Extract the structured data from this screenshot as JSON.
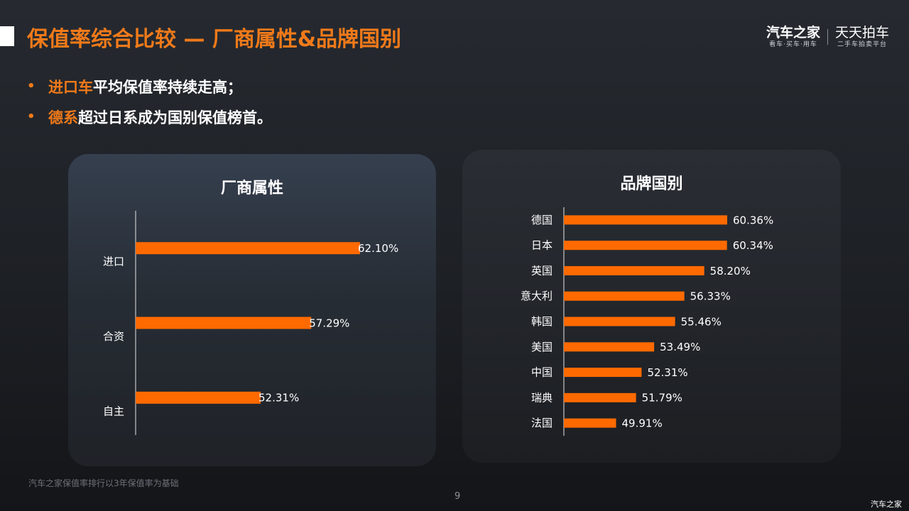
{
  "header": {
    "title": "保值率综合比较 — 厂商属性&品牌国别",
    "logo_left_main": "汽车之家",
    "logo_left_sub": "看车·买车·用车",
    "logo_right_main": "天天拍车",
    "logo_right_sub": "二手车拍卖平台"
  },
  "bullets": [
    {
      "highlight": "进口车",
      "text": "平均保值率持续走高；"
    },
    {
      "highlight": "德系",
      "text": "超过日系成为国别保值榜首。"
    }
  ],
  "colors": {
    "accent": "#f07a1a",
    "bar": "#ff6a00"
  },
  "chart_data": [
    {
      "type": "bar",
      "orientation": "horizontal",
      "title": "厂商属性",
      "categories": [
        "进口",
        "合资",
        "自主"
      ],
      "values": [
        62.1,
        57.29,
        52.31
      ],
      "value_labels": [
        "62.10%",
        "57.29%",
        "52.31%"
      ],
      "xlim": [
        40,
        62.1
      ],
      "grid": false
    },
    {
      "type": "bar",
      "orientation": "horizontal",
      "title": "品牌国别",
      "categories": [
        "德国",
        "日本",
        "英国",
        "意大利",
        "韩国",
        "美国",
        "中国",
        "瑞典",
        "法国"
      ],
      "values": [
        60.36,
        60.34,
        58.2,
        56.33,
        55.46,
        53.49,
        52.31,
        51.79,
        49.91
      ],
      "value_labels": [
        "60.36%",
        "60.34%",
        "58.20%",
        "56.33%",
        "55.46%",
        "53.49%",
        "52.31%",
        "51.79%",
        "49.91%"
      ],
      "xlim": [
        45,
        60.36
      ],
      "grid": false
    }
  ],
  "footer": {
    "note": "汽车之家保值率排行以3年保值率为基础",
    "page_number": "9",
    "watermark": "汽车之家"
  }
}
